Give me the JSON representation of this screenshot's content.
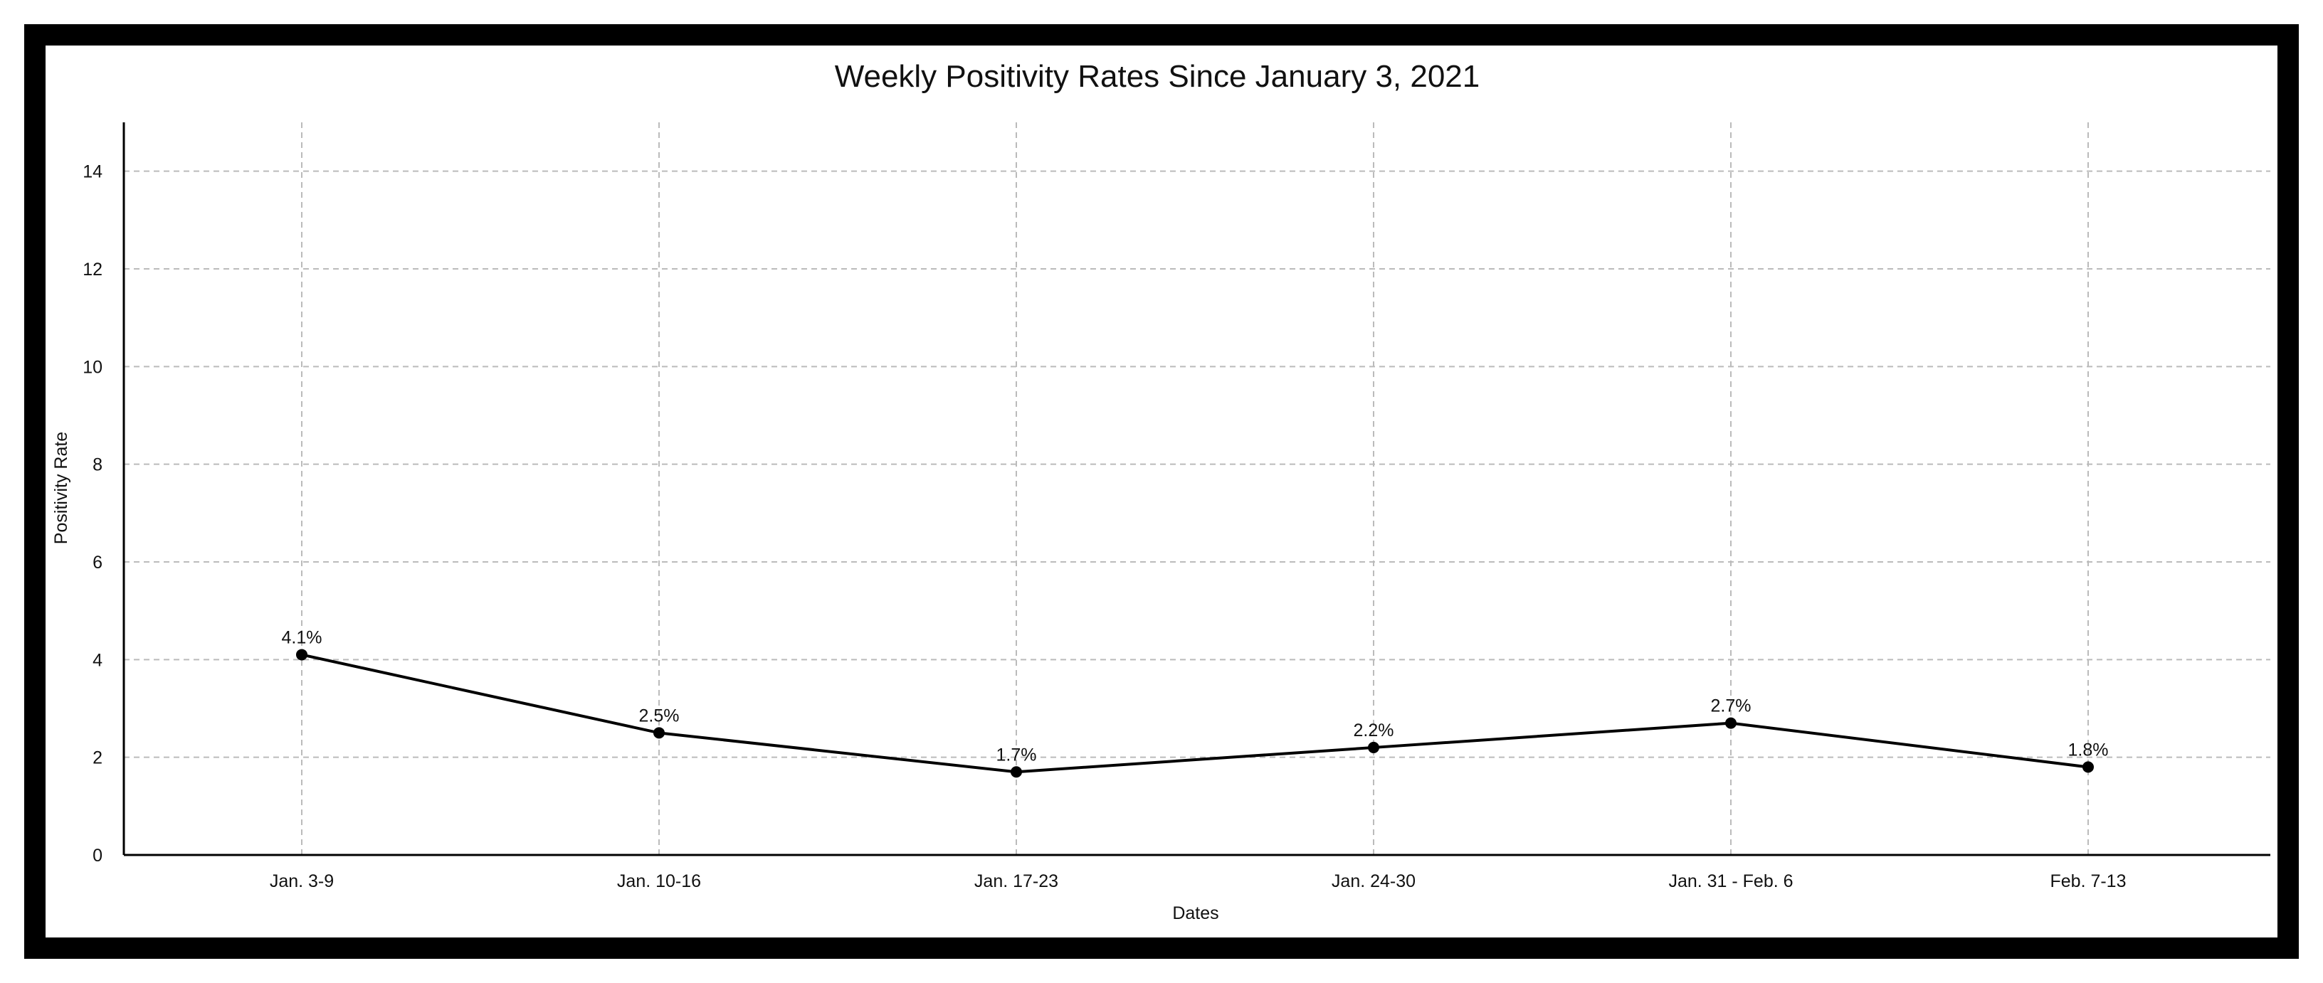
{
  "chart_data": {
    "type": "line",
    "title": "Weekly Positivity Rates Since January 3, 2021",
    "xlabel": "Dates",
    "ylabel": "Positivity Rate",
    "categories": [
      "Jan. 3-9",
      "Jan. 10-16",
      "Jan. 17-23",
      "Jan. 24-30",
      "Jan. 31 - Feb. 6",
      "Feb. 7-13"
    ],
    "series": [
      {
        "values": [
          4.1,
          2.5,
          1.7,
          2.2,
          2.7,
          1.8
        ],
        "data_labels": [
          "4.1%",
          "2.5%",
          "1.7%",
          "2.2%",
          "2.7%",
          "1.8%"
        ],
        "color": "#000000"
      }
    ],
    "ylim": [
      0,
      15
    ],
    "yticks": [
      0,
      2,
      4,
      6,
      8,
      10,
      12,
      14
    ],
    "grid": true,
    "grid_style": "dashed",
    "grid_color": "#bbbbbb",
    "legend": "none"
  }
}
